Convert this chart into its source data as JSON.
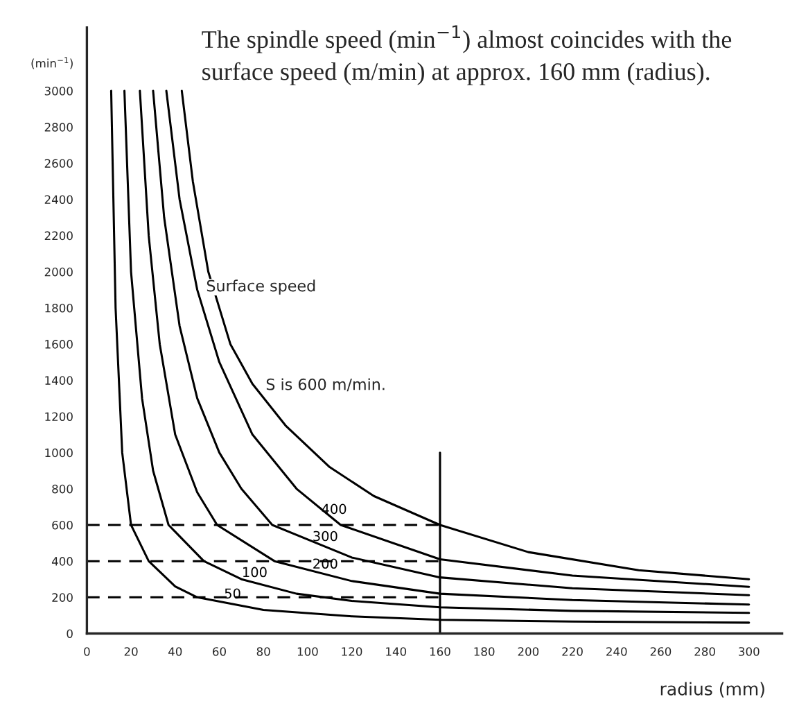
{
  "chart_data": {
    "type": "line",
    "xlabel": "radius (mm)",
    "ylabel": "(min$^{−1}$)",
    "xlim": [
      0,
      315
    ],
    "ylim": [
      0,
      3350
    ],
    "xticks": [
      0,
      20,
      40,
      60,
      80,
      100,
      120,
      140,
      160,
      180,
      200,
      220,
      240,
      260,
      280,
      300
    ],
    "yticks": [
      0,
      200,
      400,
      600,
      800,
      1000,
      1200,
      1400,
      1600,
      1800,
      2000,
      2200,
      2400,
      2600,
      2800,
      3000
    ],
    "grid": false,
    "legend": false,
    "marker": "none",
    "line_style": "solid",
    "series": [
      {
        "name": "50",
        "color": "#000000",
        "x": [
          11,
          13,
          16,
          20,
          28,
          40,
          50,
          80,
          120,
          160,
          220,
          300
        ],
        "values": [
          3000,
          1800,
          1000,
          600,
          400,
          260,
          200,
          130,
          95,
          76,
          66,
          60
        ]
      },
      {
        "name": "100",
        "color": "#000000",
        "x": [
          17,
          20,
          25,
          30,
          37,
          53,
          70,
          95,
          120,
          160,
          220,
          300
        ],
        "values": [
          3000,
          2000,
          1300,
          900,
          600,
          400,
          300,
          220,
          180,
          145,
          125,
          114
        ]
      },
      {
        "name": "200",
        "color": "#000000",
        "x": [
          24,
          28,
          33,
          40,
          50,
          59,
          85,
          120,
          160,
          220,
          300
        ],
        "values": [
          3000,
          2200,
          1600,
          1100,
          780,
          600,
          400,
          290,
          220,
          185,
          160
        ]
      },
      {
        "name": "300",
        "color": "#000000",
        "x": [
          30,
          35,
          42,
          50,
          60,
          70,
          84,
          120,
          160,
          220,
          300
        ],
        "values": [
          3000,
          2300,
          1700,
          1300,
          1000,
          800,
          600,
          420,
          310,
          250,
          212
        ]
      },
      {
        "name": "400",
        "color": "#000000",
        "x": [
          36,
          42,
          50,
          60,
          75,
          95,
          115,
          160,
          220,
          300
        ],
        "values": [
          3000,
          2400,
          1900,
          1500,
          1100,
          800,
          600,
          410,
          320,
          258
        ]
      },
      {
        "color": "#000000",
        "x": [
          43,
          48,
          55,
          65,
          75,
          90,
          110,
          130,
          160,
          200,
          250,
          300
        ],
        "values": [
          3000,
          2500,
          2000,
          1600,
          1380,
          1150,
          920,
          760,
          600,
          450,
          350,
          300
        ]
      },
      {
        "color": "#000000",
        "x": [
          0,
          160
        ],
        "values": [
          600,
          600
        ],
        "line_style": "dashed"
      },
      {
        "color": "#000000",
        "x": [
          0,
          160
        ],
        "values": [
          400,
          400
        ],
        "line_style": "dashed"
      },
      {
        "color": "#000000",
        "x": [
          0,
          160
        ],
        "values": [
          200,
          200
        ],
        "line_style": "dashed"
      },
      {
        "color": "#000000",
        "x": [
          160,
          160
        ],
        "values": [
          0,
          1000
        ]
      }
    ],
    "annotations": [
      "The spindle speed (min$^{−1}$) almost coincides with the surface speed (m/min) at approx. 160 mm (radius).",
      "Surface speed",
      "S is 600 m/min."
    ]
  }
}
